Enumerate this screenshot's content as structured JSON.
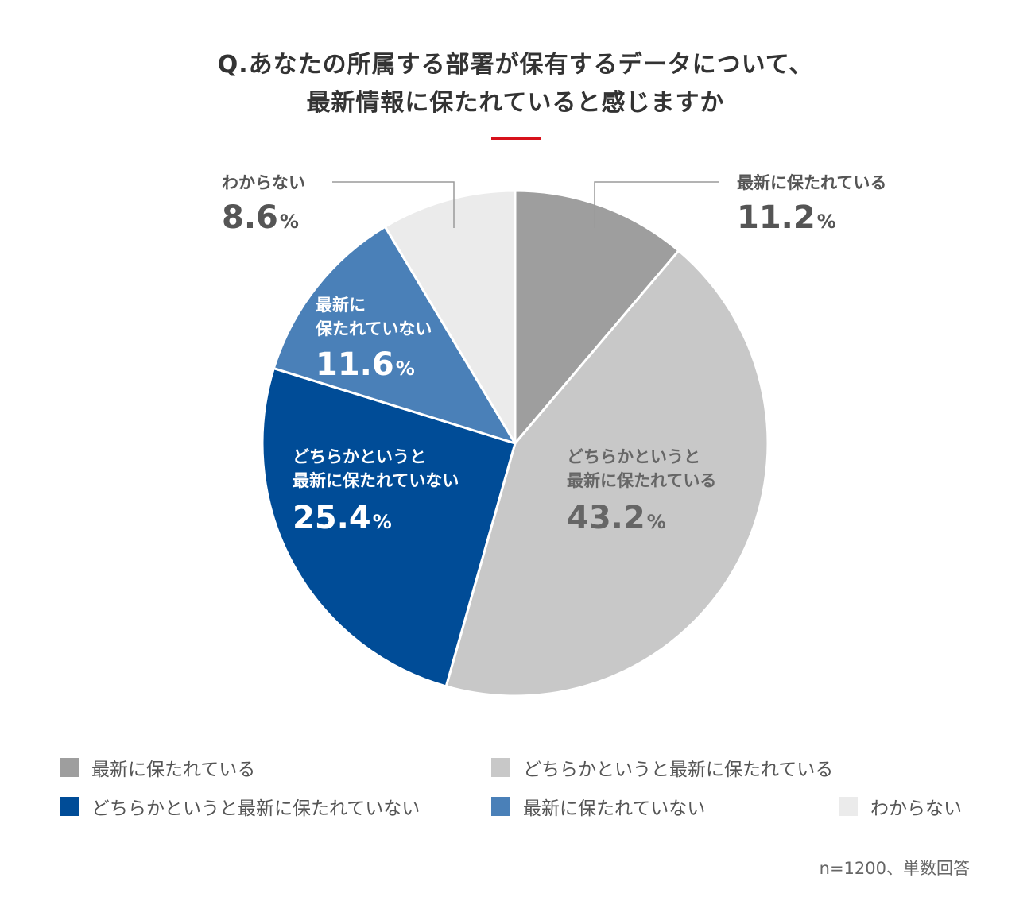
{
  "title": {
    "line1": "Q.あなたの所属する部署が保有するデータについて、",
    "line2": "最新情報に保たれていると感じますか"
  },
  "chart_data": {
    "type": "pie",
    "categories": [
      "最新に保たれている",
      "どちらかというと最新に保たれている",
      "どちらかというと最新に保たれていない",
      "最新に保たれていない",
      "わからない"
    ],
    "values": [
      11.2,
      43.2,
      25.4,
      11.6,
      8.6
    ],
    "colors": [
      "#9e9e9e",
      "#c8c8c8",
      "#004c97",
      "#4a80b8",
      "#ebebeb"
    ],
    "unit": "%",
    "slice_labels": [
      {
        "lines": [
          "最新に保たれている"
        ],
        "value": "11.2",
        "unit": "%"
      },
      {
        "lines": [
          "どちらかというと",
          "最新に保たれている"
        ],
        "value": "43.2",
        "unit": "%"
      },
      {
        "lines": [
          "どちらかというと",
          "最新に保たれていない"
        ],
        "value": "25.4",
        "unit": "%"
      },
      {
        "lines": [
          "最新に",
          "保たれていない"
        ],
        "value": "11.6",
        "unit": "%"
      },
      {
        "lines": [
          "わからない"
        ],
        "value": "8.6",
        "unit": "%"
      }
    ],
    "legend": [
      "最新に保たれている",
      "どちらかというと最新に保たれている",
      "どちらかというと最新に保たれていない",
      "最新に保たれていない",
      "わからない"
    ]
  },
  "footnote": "n=1200、単数回答"
}
